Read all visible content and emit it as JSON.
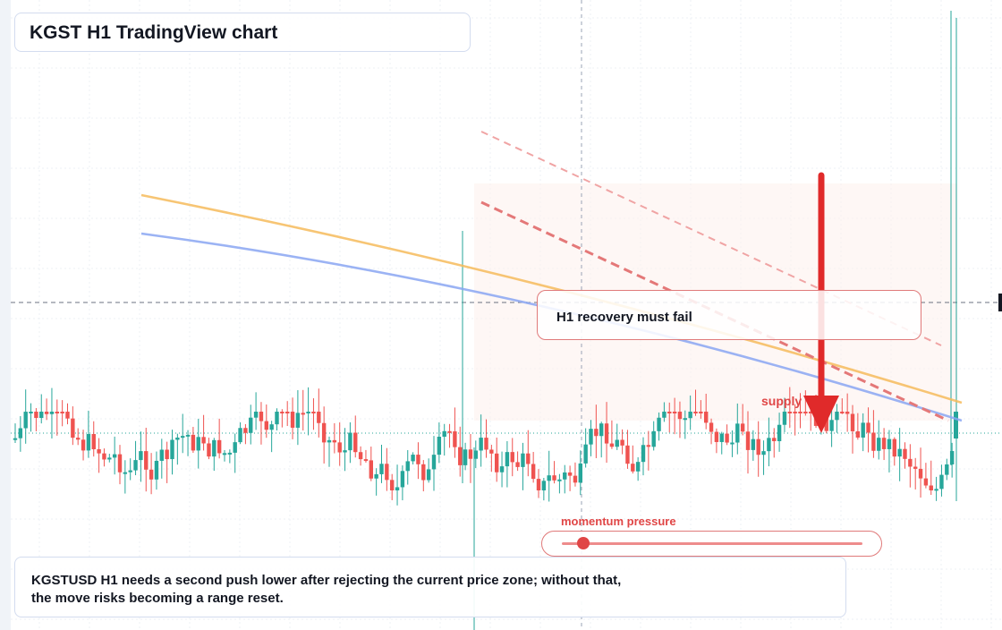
{
  "title": "KGST H1 TradingView chart",
  "callout": "H1 recovery must fail",
  "supply_label": "supply",
  "momentum": {
    "label": "momentum pressure",
    "level": 0.07
  },
  "summary": "KGSTUSD H1 needs a second push lower after rejecting the current price zone; without that, the move risks becoming a range reset.",
  "colors": {
    "bull": "#26a69a",
    "bear": "#ef5350",
    "ema_slow": "#f6bb5c",
    "ema_fast": "#8aa6f2",
    "accent_red": "#e02a2a",
    "zone": "#fdf1ef"
  },
  "chart_data": {
    "type": "candlestick",
    "symbol": "KGSTUSD",
    "timeframe": "H1",
    "bars": 180,
    "baseline_close_approx": 0.2,
    "series": [
      {
        "name": "",
        "kind": "line"
      },
      {
        "name": "",
        "kind": "line"
      }
    ],
    "annotations": [
      "H1 recovery must fail",
      "supply",
      "momentum pressure"
    ]
  }
}
